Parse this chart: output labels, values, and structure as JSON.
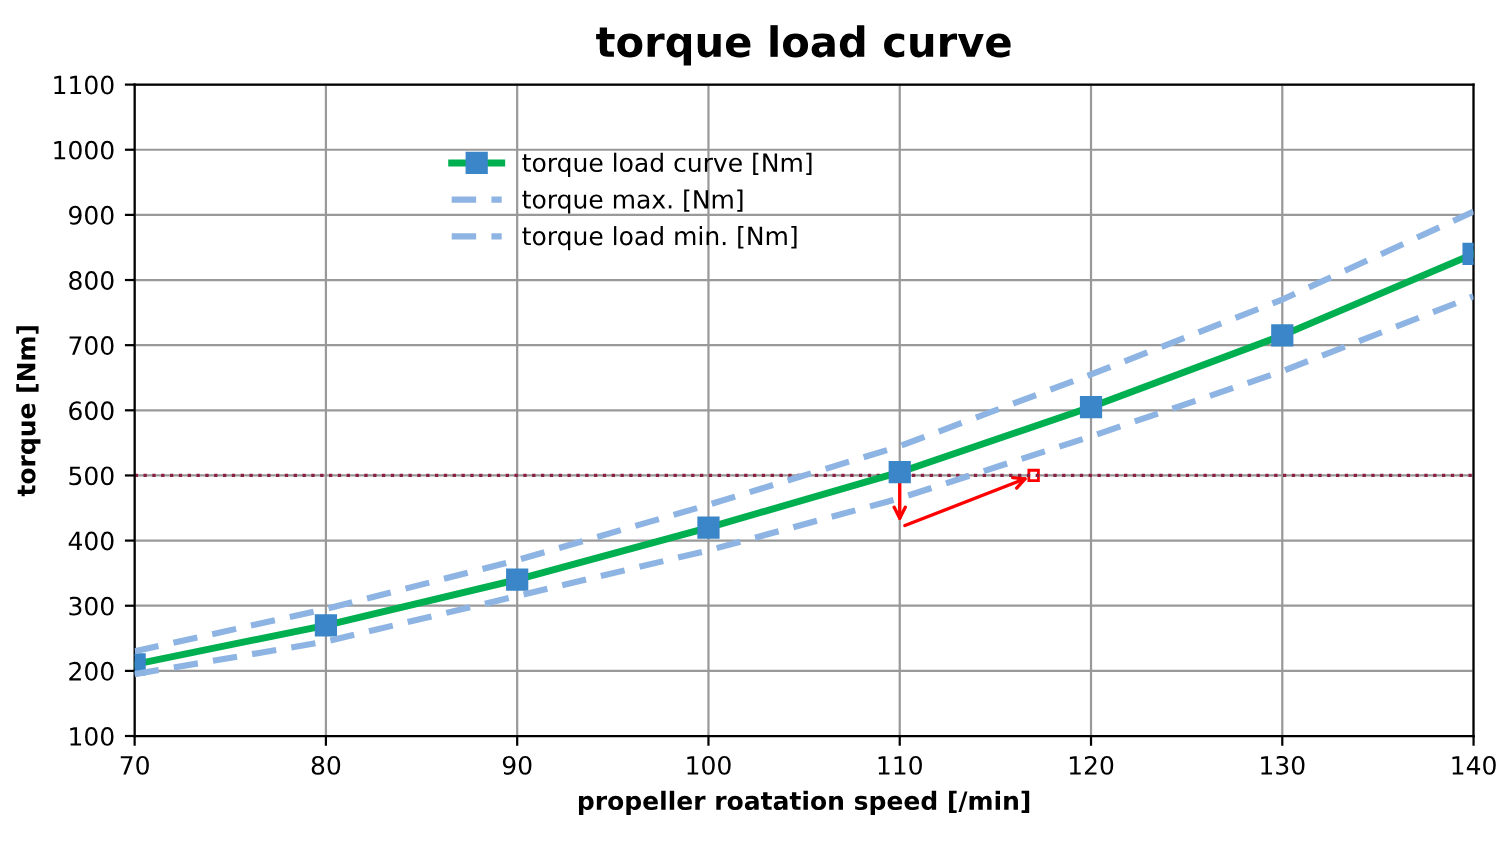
{
  "chart_data": {
    "type": "line",
    "title": "torque load curve",
    "xlabel": "propeller roatation speed [/min]",
    "ylabel": "torque [Nm]",
    "x": [
      70,
      80,
      90,
      100,
      110,
      120,
      130,
      140
    ],
    "series": [
      {
        "name": "torque load curve [Nm]",
        "color": "#00b050",
        "values": [
          210,
          270,
          340,
          420,
          505,
          605,
          715,
          840
        ],
        "marker": "square",
        "line_style": "solid"
      },
      {
        "name": "torque max. [Nm]",
        "color": "#8eb4e3",
        "values": [
          230,
          295,
          370,
          455,
          545,
          655,
          770,
          905
        ],
        "marker": "none",
        "line_style": "dashed"
      },
      {
        "name": "torque load min. [Nm]",
        "color": "#8eb4e3",
        "values": [
          195,
          245,
          315,
          385,
          465,
          560,
          660,
          775
        ],
        "marker": "none",
        "line_style": "dashed"
      }
    ],
    "ref_lines": [
      {
        "axis": "y",
        "value": 500,
        "label": null,
        "color": "#8b2040",
        "line_style": "dotted"
      }
    ],
    "xlim": [
      70,
      140
    ],
    "xticks": [
      70,
      80,
      90,
      100,
      110,
      120,
      130,
      140
    ],
    "ylim": [
      100,
      1100
    ],
    "yticks": [
      100,
      200,
      300,
      400,
      500,
      600,
      700,
      800,
      900,
      1000,
      1100
    ],
    "grid": true,
    "legend": "top left"
  }
}
